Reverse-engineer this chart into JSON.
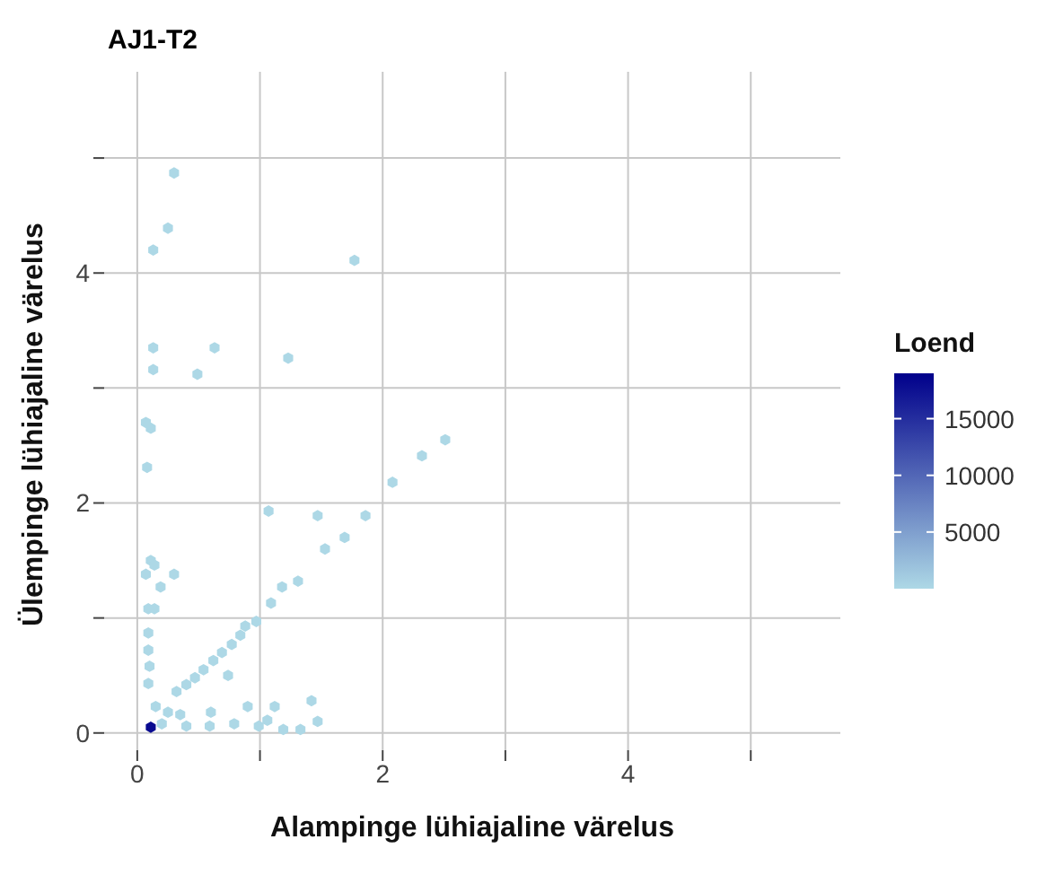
{
  "chart_data": {
    "type": "scatter",
    "title": "AJ1-T2",
    "xlabel": "Alampinge lühiajaline värelus",
    "ylabel": "Ülempinge lühiajaline värelus",
    "clabel": "Loend",
    "x": [
      0.3,
      0.25,
      0.13,
      1.77,
      0.13,
      0.63,
      0.13,
      0.49,
      1.23,
      0.07,
      0.11,
      0.08,
      2.51,
      2.32,
      2.08,
      1.07,
      1.47,
      1.86,
      1.69,
      1.53,
      1.31,
      1.18,
      1.09,
      0.11,
      0.14,
      0.07,
      0.3,
      0.19,
      0.09,
      0.14,
      0.97,
      0.88,
      0.84,
      0.77,
      0.69,
      0.62,
      0.54,
      0.47,
      0.4,
      0.32,
      0.09,
      0.09,
      0.1,
      0.09,
      0.15,
      0.25,
      0.35,
      0.2,
      0.4,
      0.59,
      0.79,
      0.99,
      1.19,
      1.33,
      1.06,
      0.74,
      0.6,
      0.9,
      1.12,
      1.42,
      1.47,
      0.11
    ],
    "values": [
      4.87,
      4.39,
      4.2,
      4.11,
      3.35,
      3.35,
      3.16,
      3.12,
      3.26,
      2.7,
      2.65,
      2.31,
      2.55,
      2.41,
      2.18,
      1.93,
      1.89,
      1.89,
      1.7,
      1.6,
      1.32,
      1.27,
      1.13,
      1.5,
      1.46,
      1.38,
      1.38,
      1.27,
      1.08,
      1.08,
      0.97,
      0.93,
      0.85,
      0.77,
      0.7,
      0.63,
      0.55,
      0.48,
      0.42,
      0.36,
      0.87,
      0.72,
      0.58,
      0.43,
      0.23,
      0.18,
      0.16,
      0.08,
      0.06,
      0.06,
      0.08,
      0.06,
      0.03,
      0.03,
      0.11,
      0.5,
      0.18,
      0.23,
      0.23,
      0.28,
      0.1,
      0.05
    ],
    "cvalues": [
      1,
      1,
      1,
      1,
      1,
      1,
      1,
      1,
      1,
      1,
      1,
      1,
      1,
      1,
      1,
      1,
      1,
      1,
      1,
      1,
      1,
      1,
      1,
      1,
      1,
      1,
      1,
      1,
      1,
      1,
      1,
      1,
      1,
      1,
      1,
      1,
      1,
      1,
      1,
      1,
      1,
      1,
      1,
      1,
      1,
      1,
      1,
      1,
      1,
      1,
      1,
      1,
      1,
      1,
      1,
      1,
      1,
      1,
      1,
      1,
      1,
      18000
    ],
    "clim": [
      1,
      19000
    ],
    "cticks": [
      5000,
      10000,
      15000
    ],
    "xlim": [
      -0.27,
      5.73
    ],
    "ylim": [
      -0.15,
      5.75
    ],
    "xticks": [
      0,
      {
        "value": 1,
        "label": null
      },
      2,
      {
        "value": 3,
        "label": null
      },
      4,
      {
        "value": 5,
        "label": null
      }
    ],
    "yticks": [
      0,
      {
        "value": 1,
        "label": null
      },
      2,
      {
        "value": 3,
        "label": null
      },
      4,
      {
        "value": 5,
        "label": null
      }
    ],
    "grid": true
  }
}
